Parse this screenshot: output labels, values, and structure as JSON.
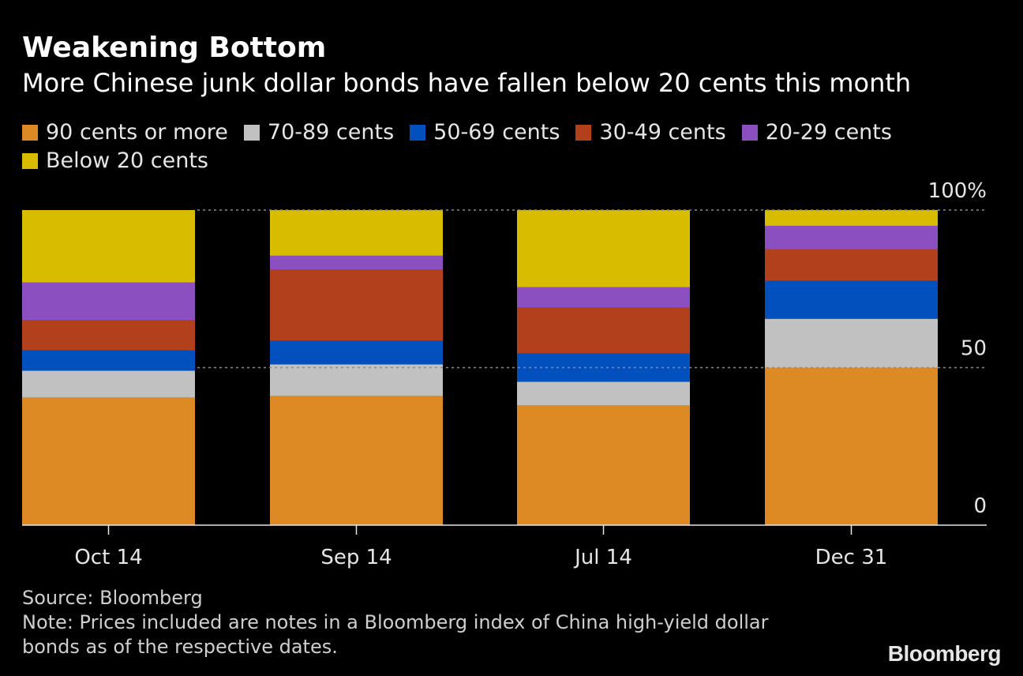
{
  "chart_data": {
    "type": "bar",
    "stacked": true,
    "title": "Weakening Bottom",
    "subtitle": "More Chinese junk dollar bonds have fallen below 20 cents this month",
    "categories": [
      "Oct 14",
      "Sep 14",
      "Jul 14",
      "Dec 31"
    ],
    "series": [
      {
        "name": "90 cents or more",
        "color": "#de8a24",
        "values": [
          40.5,
          41,
          38,
          50
        ]
      },
      {
        "name": "70-89 cents",
        "color": "#c1c1c1",
        "values": [
          8.5,
          10,
          7.5,
          15.5
        ]
      },
      {
        "name": "50-69 cents",
        "color": "#0250bd",
        "values": [
          6.5,
          7.5,
          9,
          12
        ]
      },
      {
        "name": "30-49 cents",
        "color": "#b3401d",
        "values": [
          9.5,
          22.5,
          14.5,
          10
        ]
      },
      {
        "name": "20-29 cents",
        "color": "#8b4fbf",
        "values": [
          12,
          4.5,
          6.5,
          7.5
        ]
      },
      {
        "name": "Below 20 cents",
        "color": "#d8bc00",
        "values": [
          23,
          14.5,
          24.5,
          5
        ]
      }
    ],
    "yticks": [
      {
        "value": 0,
        "label": "0"
      },
      {
        "value": 50,
        "label": "50"
      },
      {
        "value": 100,
        "label": "100%"
      }
    ],
    "ylim": [
      0,
      100
    ],
    "xlabel": "",
    "ylabel": "",
    "grid": true,
    "legend_position": "top"
  },
  "footer": {
    "source": "Source: Bloomberg",
    "note": "Note: Prices included are notes in a Bloomberg index of China high-yield dollar bonds as of the respective dates."
  },
  "brand": "Bloomberg"
}
